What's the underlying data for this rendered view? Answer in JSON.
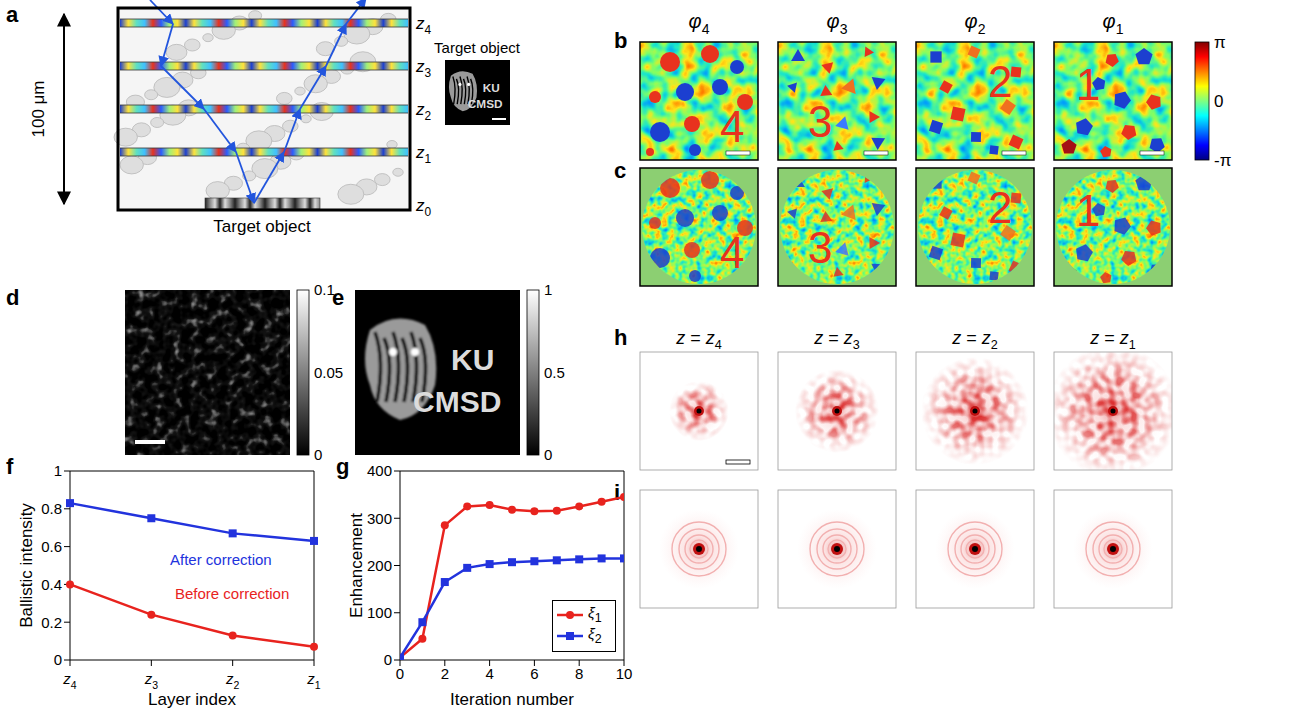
{
  "figure": {
    "a": {
      "letter": "a",
      "scale": "100 μm",
      "layers": [
        "z4",
        "z3",
        "z2",
        "z1",
        "z0"
      ],
      "target_label": "Target object",
      "inset": {
        "title": "Target object",
        "text": [
          "KU",
          "CMSD"
        ]
      }
    },
    "b": {
      "letter": "b",
      "titles": [
        "φ4",
        "φ3",
        "φ2",
        "φ1"
      ],
      "digits": [
        "4",
        "3",
        "2",
        "1"
      ],
      "colorbar": {
        "range": [
          -3.14159,
          3.14159
        ],
        "ticks": [
          {
            "value": 3.14159,
            "label": "π"
          },
          0,
          {
            "value": -3.14159,
            "label": "-π"
          }
        ]
      }
    },
    "c": {
      "letter": "c",
      "digits": [
        "4",
        "3",
        "2",
        "1"
      ]
    },
    "d": {
      "letter": "d",
      "colorbar": {
        "range": [
          0,
          0.1
        ],
        "ticks": [
          0.1,
          0.05,
          0
        ]
      }
    },
    "e": {
      "letter": "e",
      "text": [
        "KU",
        "CMSD"
      ],
      "colorbar": {
        "range": [
          0,
          1
        ],
        "ticks": [
          1,
          0.5,
          0
        ]
      }
    },
    "h": {
      "letter": "h",
      "titles": [
        "z = z4",
        "z = z3",
        "z = z2",
        "z = z1"
      ]
    },
    "i": {
      "letter": "i"
    }
  },
  "chart_data": [
    {
      "panel": "f",
      "type": "line",
      "x_label": "Layer index",
      "y_label": "Ballistic intensity",
      "categories": [
        "z4",
        "z3",
        "z2",
        "z1"
      ],
      "series": [
        {
          "name": "After correction",
          "color": "#2233dd",
          "marker": "square",
          "values": [
            0.83,
            0.75,
            0.67,
            0.63
          ]
        },
        {
          "name": "Before correction",
          "color": "#e8231e",
          "marker": "circle",
          "values": [
            0.4,
            0.24,
            0.13,
            0.07
          ]
        }
      ],
      "ylim": [
        0,
        1
      ],
      "yticks": [
        0,
        0.2,
        0.4,
        0.6,
        0.8,
        1
      ],
      "grid": false
    },
    {
      "panel": "g",
      "type": "line",
      "x_label": "Iteration number",
      "y_label": "Enhancement",
      "x": [
        0,
        1,
        2,
        3,
        4,
        5,
        6,
        7,
        8,
        9,
        10
      ],
      "series": [
        {
          "name": "ξ1",
          "color": "#e8231e",
          "marker": "circle",
          "values": [
            5,
            45,
            285,
            325,
            328,
            318,
            315,
            316,
            325,
            335,
            345
          ]
        },
        {
          "name": "ξ2",
          "color": "#2233dd",
          "marker": "square",
          "values": [
            5,
            80,
            165,
            195,
            203,
            207,
            209,
            211,
            213,
            215,
            215
          ]
        }
      ],
      "xlim": [
        0,
        10
      ],
      "xticks": [
        0,
        2,
        4,
        6,
        8,
        10
      ],
      "ylim": [
        0,
        400
      ],
      "yticks": [
        0,
        100,
        200,
        300,
        400
      ],
      "legend": "lower right",
      "grid": false
    }
  ]
}
